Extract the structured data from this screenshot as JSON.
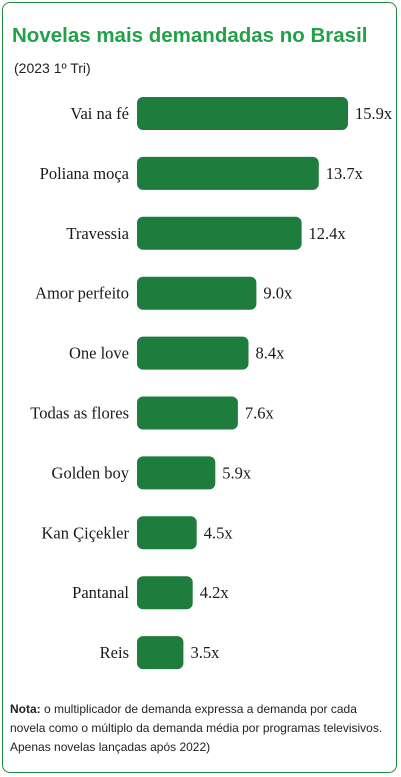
{
  "header": {
    "title": "Novelas mais demandadas no Brasil",
    "subtitle": "(2023 1º Tri)"
  },
  "chart_data": {
    "type": "bar",
    "orientation": "horizontal",
    "categories": [
      "Vai na fé",
      "Poliana moça",
      "Travessia",
      "Amor perfeito",
      "One love",
      "Todas as flores",
      "Golden boy",
      "Kan Çiçekler",
      "Pantanal",
      "Reis"
    ],
    "values": [
      15.9,
      13.7,
      12.4,
      9.0,
      8.4,
      7.6,
      5.9,
      4.5,
      4.2,
      3.5
    ],
    "value_labels": [
      "15.9x",
      "13.7x",
      "12.4x",
      "9.0x",
      "8.4x",
      "7.6x",
      "5.9x",
      "4.5x",
      "4.2x",
      "3.5x"
    ],
    "title": "Novelas mais demandadas no Brasil",
    "subtitle": "(2023 1º Tri)",
    "xlabel": "",
    "ylabel": "",
    "grid": false,
    "bar_color": "#1e7d3c"
  },
  "footer": {
    "note_label": "Nota:",
    "note_text": " o multiplicador de demanda expressa a demanda por cada novela como o múltiplo da demanda média por programas televisivos. Apenas novelas lançadas após 2022)"
  },
  "colors": {
    "accent": "#23a14a",
    "border": "#1f8a3f",
    "bar": "#1e7d3c"
  }
}
